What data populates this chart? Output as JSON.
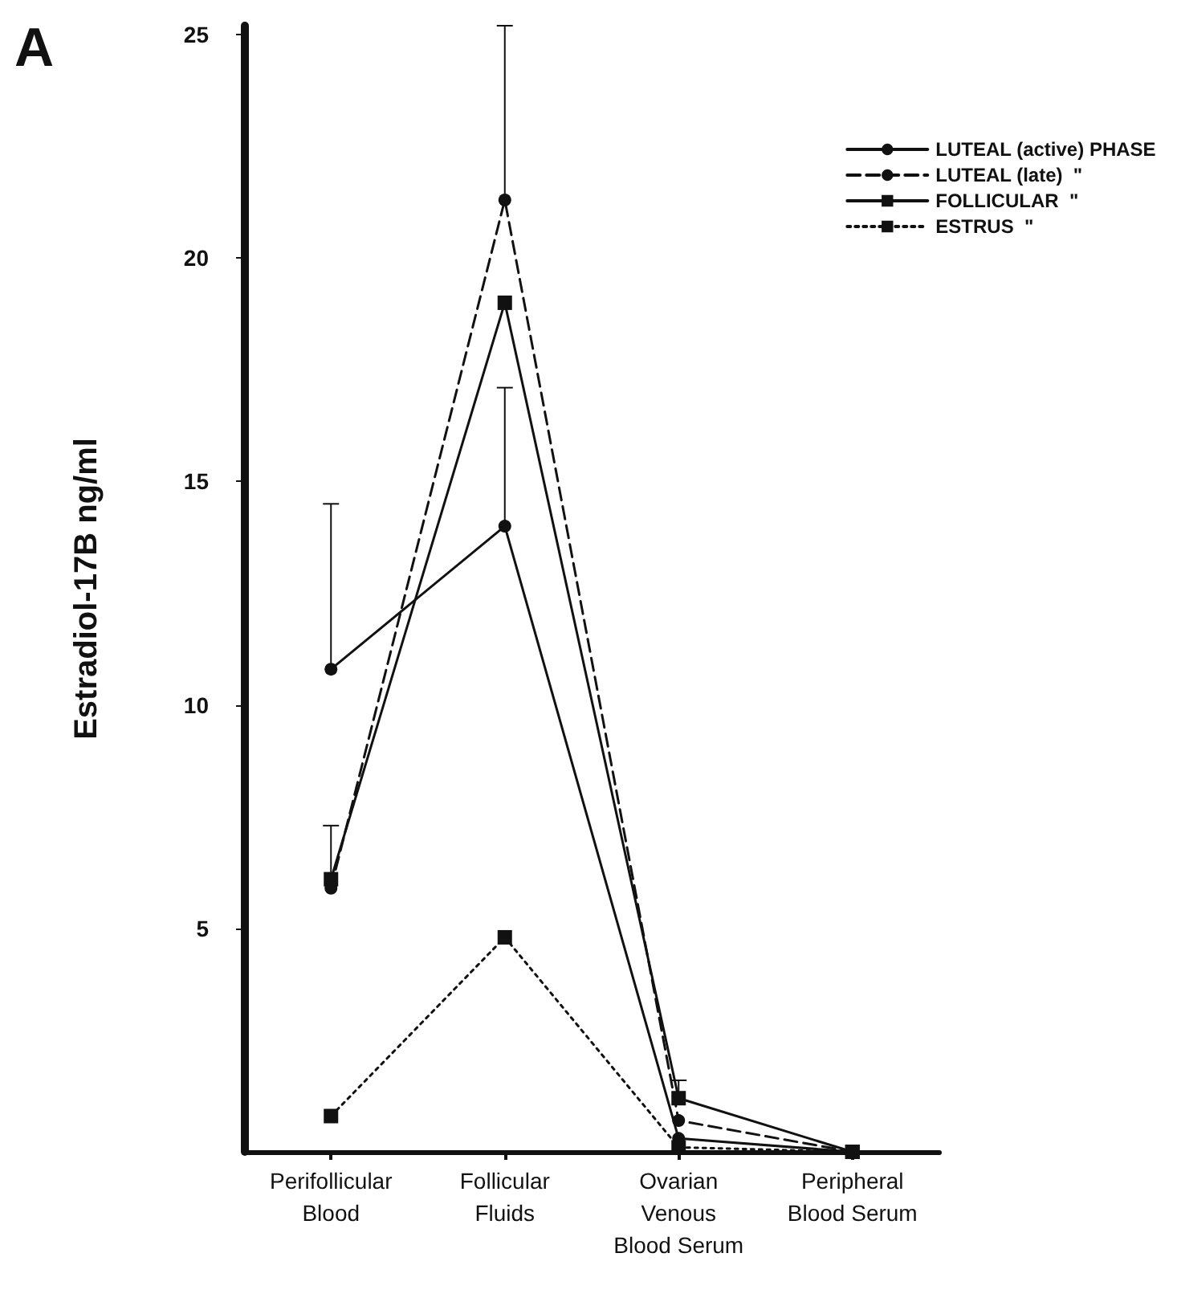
{
  "chart_data": {
    "type": "line",
    "title": "A",
    "ylabel": "Estradiol-17B ng/ml",
    "categories": [
      "Perifollicular\nBlood",
      "Follicular\nFluids",
      "Ovarian\nVenous\nBlood Serum",
      "Peripheral\nBlood Serum"
    ],
    "ylim": [
      0,
      25.2
    ],
    "yticks": [
      5,
      10,
      15,
      20,
      25
    ],
    "grid": false,
    "legend": "top right",
    "series": [
      {
        "name": "LUTEAL (active) PHASE",
        "color": "#111111",
        "marker": "circle",
        "line_style": "solid",
        "values": [
          10.8,
          14.0,
          0.3,
          0.0
        ],
        "errors": [
          [
            10.8,
            14.5
          ],
          [
            14.0,
            17.1
          ],
          null,
          null
        ]
      },
      {
        "name": "LUTEAL (late)  \"",
        "color": "#111111",
        "marker": "circle",
        "line_style": "dashed",
        "values": [
          5.9,
          21.3,
          0.7,
          0.0
        ],
        "errors": [
          null,
          [
            21.3,
            25.2
          ],
          null,
          null
        ]
      },
      {
        "name": "FOLLICULAR  \"",
        "color": "#111111",
        "marker": "square",
        "line_style": "solid",
        "values": [
          6.1,
          19.0,
          1.2,
          0.0
        ],
        "errors": [
          [
            6.1,
            7.3
          ],
          null,
          [
            1.2,
            1.6
          ],
          null
        ]
      },
      {
        "name": "ESTRUS  \"",
        "color": "#111111",
        "marker": "square",
        "line_style": "dotted",
        "values": [
          0.8,
          4.8,
          0.1,
          0.0
        ]
      }
    ]
  }
}
